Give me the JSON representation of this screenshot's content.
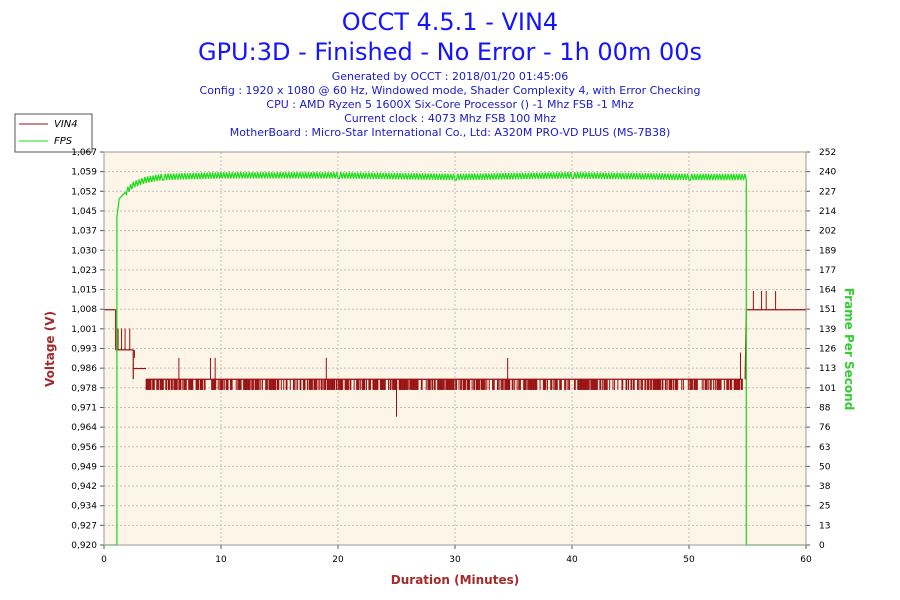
{
  "header": {
    "title": "OCCT 4.5.1 - VIN4",
    "subtitle": "GPU:3D - Finished - No Error - 1h 00m 00s",
    "info_lines": [
      "Generated by OCCT : 2018/01/20 01:45:06",
      "Config : 1920 x 1080 @ 60 Hz, Windowed mode, Shader Complexity 4, with Error Checking",
      "CPU : AMD Ryzen 5 1600X Six-Core Processor () -1 Mhz FSB -1 Mhz",
      "Current clock : 4073 Mhz FSB 100 Mhz",
      "MotherBoard : Micro-Star International Co., Ltd: A320M PRO-VD PLUS (MS-7B38)"
    ]
  },
  "chart_data": {
    "type": "line",
    "xlabel": "Duration (Minutes)",
    "ylabel": "Voltage (V)",
    "y2label": "Frame Per Second",
    "xlim": [
      0,
      60
    ],
    "ylim": [
      0.92,
      1.067
    ],
    "y2lim": [
      0,
      252
    ],
    "x_ticks": [
      "0",
      "10",
      "20",
      "30",
      "40",
      "50",
      "60"
    ],
    "y_ticks": [
      "0,920",
      "0,927",
      "0,934",
      "0,942",
      "0,949",
      "0,956",
      "0,964",
      "0,971",
      "0,978",
      "0,986",
      "0,993",
      "1,001",
      "1,008",
      "1,015",
      "1,023",
      "1,030",
      "1,037",
      "1,045",
      "1,052",
      "1,059",
      "1,067"
    ],
    "y2_ticks": [
      "0",
      "13",
      "25",
      "38",
      "50",
      "63",
      "76",
      "88",
      "101",
      "113",
      "126",
      "139",
      "151",
      "164",
      "177",
      "189",
      "202",
      "214",
      "227",
      "240",
      "252"
    ],
    "grid": true,
    "legend_placement": "top-left",
    "colors": {
      "vin4": "#9a1010",
      "fps": "#22dd22",
      "plot_bg": "#fdf6e8",
      "grid": "#c0c0c0",
      "title": "#1414ff",
      "info": "#1a1acc",
      "xlabel": "#a52a2a",
      "ylabel": "#a52a2a",
      "y2label": "#33cc33"
    },
    "series": [
      {
        "name": "VIN4",
        "axis": "left",
        "base_segments": [
          {
            "x": [
              0,
              1.0
            ],
            "y": 1.008
          },
          {
            "x": [
              1.0,
              1.5
            ],
            "y": 0.993
          },
          {
            "x": [
              1.5,
              2.5
            ],
            "y": 0.993
          },
          {
            "x": [
              2.5,
              3.6
            ],
            "y": 0.986
          },
          {
            "x": [
              3.6,
              54.6
            ],
            "y": 0.982
          },
          {
            "x": [
              54.9,
              60
            ],
            "y": 1.008
          }
        ],
        "spike_zone": {
          "x": [
            3.6,
            54.6
          ],
          "low": 0.978,
          "high": 0.982
        },
        "spikes": [
          {
            "x": 1.2,
            "y": 1.001
          },
          {
            "x": 1.5,
            "y": 1.001
          },
          {
            "x": 1.8,
            "y": 1.001
          },
          {
            "x": 2.2,
            "y": 1.001
          },
          {
            "x": 2.6,
            "y": 0.99
          },
          {
            "x": 6.4,
            "y": 0.99
          },
          {
            "x": 9.1,
            "y": 0.99
          },
          {
            "x": 9.5,
            "y": 0.99
          },
          {
            "x": 19.0,
            "y": 0.99
          },
          {
            "x": 34.5,
            "y": 0.99
          },
          {
            "x": 25.0,
            "y": 0.968
          },
          {
            "x": 54.4,
            "y": 0.992
          },
          {
            "x": 55.5,
            "y": 1.015
          },
          {
            "x": 56.2,
            "y": 1.015
          },
          {
            "x": 56.6,
            "y": 1.015
          },
          {
            "x": 57.4,
            "y": 1.015
          }
        ]
      },
      {
        "name": "FPS",
        "axis": "right",
        "points": [
          {
            "x": 0,
            "y": 0
          },
          {
            "x": 1.1,
            "y": 0
          },
          {
            "x": 1.1,
            "y": 210
          },
          {
            "x": 1.3,
            "y": 222
          },
          {
            "x": 1.8,
            "y": 226
          },
          {
            "x": 2.5,
            "y": 231
          },
          {
            "x": 3.5,
            "y": 234
          },
          {
            "x": 5,
            "y": 236
          },
          {
            "x": 10,
            "y": 237
          },
          {
            "x": 20,
            "y": 237
          },
          {
            "x": 30,
            "y": 236
          },
          {
            "x": 40,
            "y": 237
          },
          {
            "x": 50,
            "y": 236
          },
          {
            "x": 54.9,
            "y": 236
          },
          {
            "x": 54.9,
            "y": 0
          },
          {
            "x": 60,
            "y": 0
          }
        ],
        "ripple_amplitude": 2
      }
    ]
  }
}
